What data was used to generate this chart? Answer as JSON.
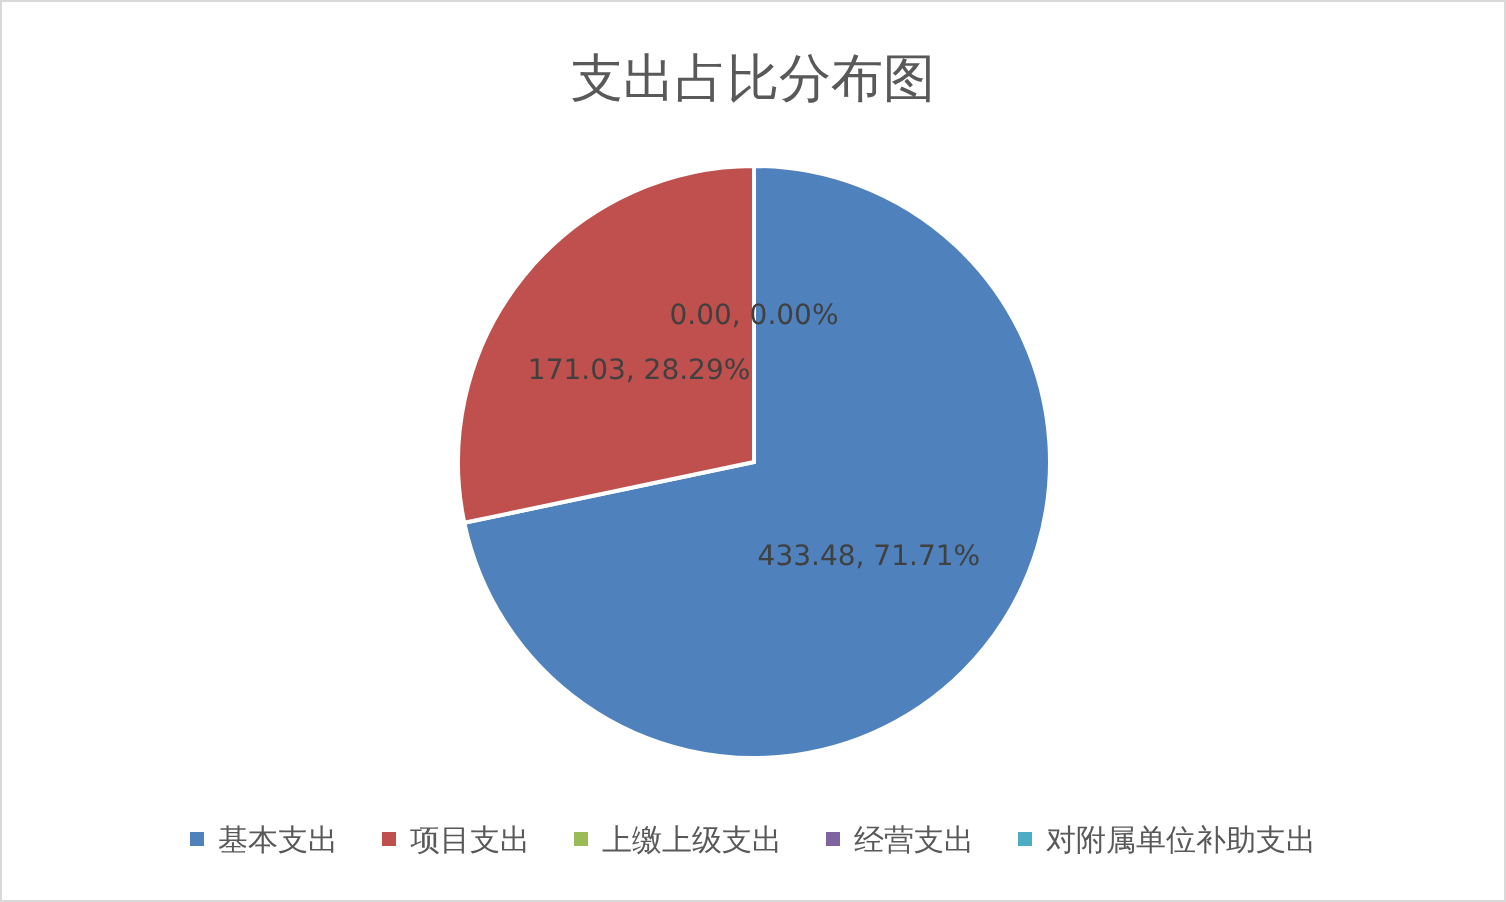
{
  "chart_data": {
    "type": "pie",
    "title": "支出占比分布图",
    "categories": [
      "基本支出",
      "项目支出",
      "上缴上级支出",
      "经营支出",
      "对附属单位补助支出"
    ],
    "values": [
      433.48,
      171.03,
      0,
      0,
      0
    ],
    "colors": [
      "#4f81bd",
      "#c0504d",
      "#9bbb59",
      "#8064a2",
      "#4bacc6"
    ],
    "value_labels": [
      "433.48, 71.71%",
      "171.03, 28.29%",
      "0.00, 0.00%",
      null,
      null
    ],
    "legend": "bottom"
  }
}
